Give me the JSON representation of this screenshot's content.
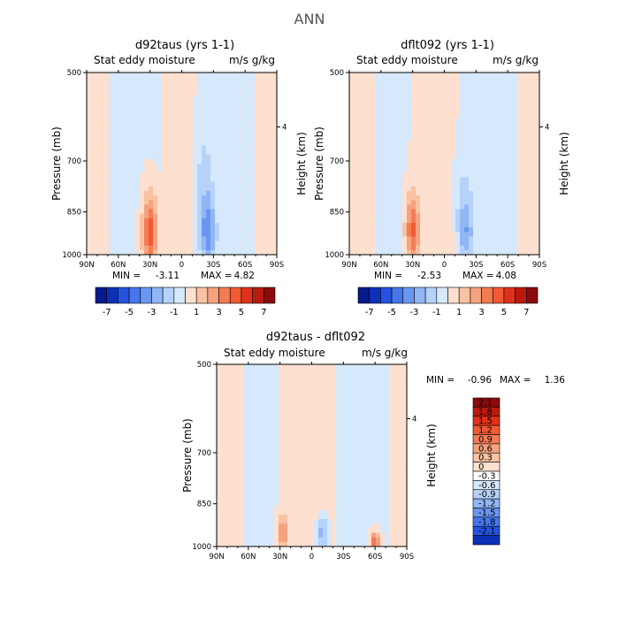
{
  "figure_title": "ANN",
  "colors": {
    "pos": [
      "#fde0cf",
      "#f8c2a3",
      "#f5a27e",
      "#f37c55",
      "#f15a34",
      "#e0321a",
      "#b81a0d",
      "#8b0a0a"
    ],
    "neg": [
      "#d6e8fb",
      "#b6d2f8",
      "#90b6f5",
      "#6b96f0",
      "#4676ea",
      "#2553e0",
      "#0d30b8",
      "#061a8a"
    ],
    "white": "#ffffff"
  },
  "chart_data": [
    {
      "type": "heatmap",
      "title": "d92taus (yrs 1-1)",
      "left_label": "Stat eddy moisture",
      "right_label": "m/s g/kg",
      "ylabel": "Pressure (mb)",
      "ylabel_right": "Height (km)",
      "xticks": [
        "90N",
        "60N",
        "30N",
        "0",
        "30S",
        "60S",
        "90S"
      ],
      "yticks": [
        "500",
        "700",
        "850",
        "1000"
      ],
      "yticks_right": [
        "4"
      ],
      "min_label": "MIN =",
      "min_value": "-3.11",
      "max_label": "MAX =",
      "max_value": "4.82",
      "contour_levels": [
        "-7",
        "-5",
        "-3",
        "-1",
        "1",
        "3",
        "5",
        "7"
      ],
      "features": [
        {
          "lat": 30,
          "p": 920,
          "amp": 4.8,
          "wlat": 7,
          "wp": 120
        },
        {
          "lat": -25,
          "p": 920,
          "amp": -3.1,
          "wlat": 7,
          "wp": 110
        },
        {
          "lat": -20,
          "p": 780,
          "amp": -1.2,
          "wlat": 10,
          "wp": 180
        }
      ]
    },
    {
      "type": "heatmap",
      "title": "dflt092 (yrs 1-1)",
      "left_label": "Stat eddy moisture",
      "right_label": "m/s g/kg",
      "ylabel": "Pressure (mb)",
      "ylabel_right": "Height (km)",
      "xticks": [
        "90N",
        "60N",
        "30N",
        "0",
        "30S",
        "60S",
        "90S"
      ],
      "yticks": [
        "500",
        "700",
        "850",
        "1000"
      ],
      "yticks_right": [
        "4"
      ],
      "min_label": "MIN =",
      "min_value": "-2.53",
      "max_label": "MAX =",
      "max_value": "4.08",
      "contour_levels": [
        "-7",
        "-5",
        "-3",
        "-1",
        "1",
        "3",
        "5",
        "7"
      ],
      "features": [
        {
          "lat": 30,
          "p": 910,
          "amp": 4.1,
          "wlat": 7,
          "wp": 120
        },
        {
          "lat": -20,
          "p": 920,
          "amp": -2.5,
          "wlat": 7,
          "wp": 110
        },
        {
          "lat": -15,
          "p": 780,
          "amp": -1.0,
          "wlat": 10,
          "wp": 180
        }
      ]
    },
    {
      "type": "heatmap",
      "title": "d92taus - dflt092",
      "left_label": "Stat eddy moisture",
      "right_label": "m/s g/kg",
      "ylabel": "Pressure (mb)",
      "ylabel_right": "Height (km)",
      "xticks": [
        "90N",
        "60N",
        "30N",
        "0",
        "30S",
        "60S",
        "90S"
      ],
      "yticks": [
        "500",
        "700",
        "850",
        "1000"
      ],
      "yticks_right": [
        "4"
      ],
      "min_label": "MIN =",
      "min_value": "-0.96",
      "max_label": "MAX =",
      "max_value": "1.36",
      "contour_levels": [
        "2.1",
        "1.8",
        "1.5",
        "1.2",
        "0.9",
        "0.6",
        "0.3",
        "0",
        "-0.3",
        "-0.6",
        "-0.9",
        "-1.2",
        "-1.5",
        "-1.8",
        "-2.1"
      ],
      "features": [
        {
          "lat": -10,
          "p": 950,
          "amp": -0.96,
          "wlat": 5,
          "wp": 60
        },
        {
          "lat": 28,
          "p": 950,
          "amp": 0.8,
          "wlat": 6,
          "wp": 60
        },
        {
          "lat": -60,
          "p": 980,
          "amp": 1.36,
          "wlat": 4,
          "wp": 30
        }
      ]
    }
  ]
}
